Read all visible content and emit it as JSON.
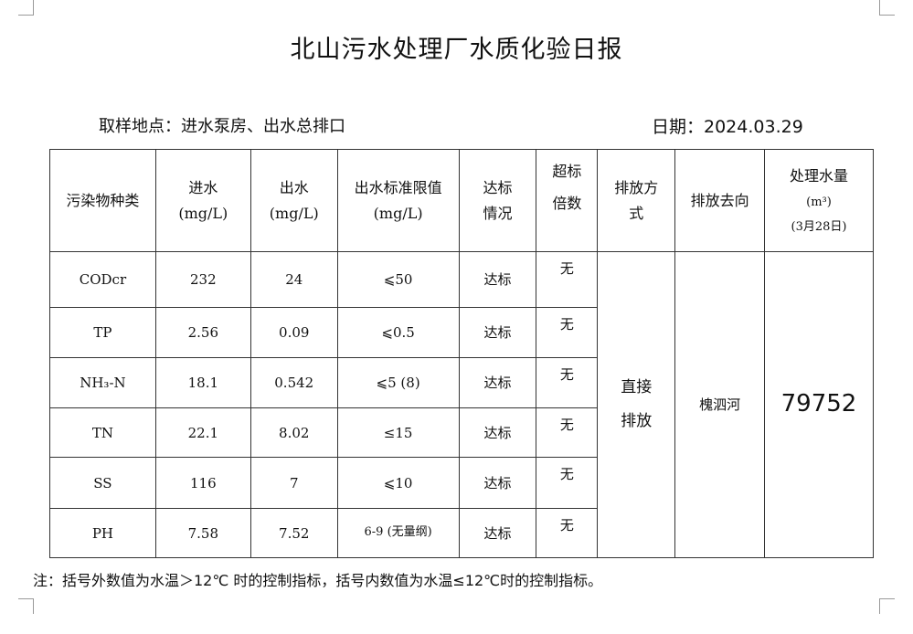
{
  "title": "北山污水处理厂水质化验日报",
  "sampling_location": "取样地点：进水泵房、出水总排口",
  "date": "日期：2024.03.29",
  "headers": {
    "pollutant": "污染物种类",
    "inflow": "进水",
    "inflow_unit": "(mg/L)",
    "outflow": "出水",
    "outflow_unit": "(mg/L)",
    "limit": "出水标准限值",
    "limit_unit": "(mg/L)",
    "compliance_1": "达标",
    "compliance_2": "情况",
    "exceed_1": "超标",
    "exceed_2": "倍数",
    "method_1": "排放方",
    "method_2": "式",
    "destination": "排放去向",
    "volume": "处理水量",
    "volume_unit": "(m³)",
    "volume_date": "(3月28日)"
  },
  "rows": [
    {
      "name": "CODcr",
      "in": "232",
      "out": "24",
      "limit": "⩽50",
      "status": "达标",
      "exceed": "无"
    },
    {
      "name": "TP",
      "in": "2.56",
      "out": "0.09",
      "limit": "⩽0.5",
      "status": "达标",
      "exceed": "无"
    },
    {
      "name": "NH₃-N",
      "in": "18.1",
      "out": "0.542",
      "limit": "⩽5 (8)",
      "status": "达标",
      "exceed": "无"
    },
    {
      "name": "TN",
      "in": "22.1",
      "out": "8.02",
      "limit": "≤15",
      "status": "达标",
      "exceed": "无"
    },
    {
      "name": "SS",
      "in": "116",
      "out": "7",
      "limit": "⩽10",
      "status": "达标",
      "exceed": "无"
    },
    {
      "name": "PH",
      "in": "7.58",
      "out": "7.52",
      "limit": "6-9 (无量纲)",
      "status": "达标",
      "exceed": "无"
    }
  ],
  "discharge_method_1": "直接",
  "discharge_method_2": "排放",
  "discharge_destination": "槐泗河",
  "treated_volume": "79752",
  "note": "注：括号外数值为水温＞12℃ 时的控制指标，括号内数值为水温≤12℃时的控制指标。"
}
